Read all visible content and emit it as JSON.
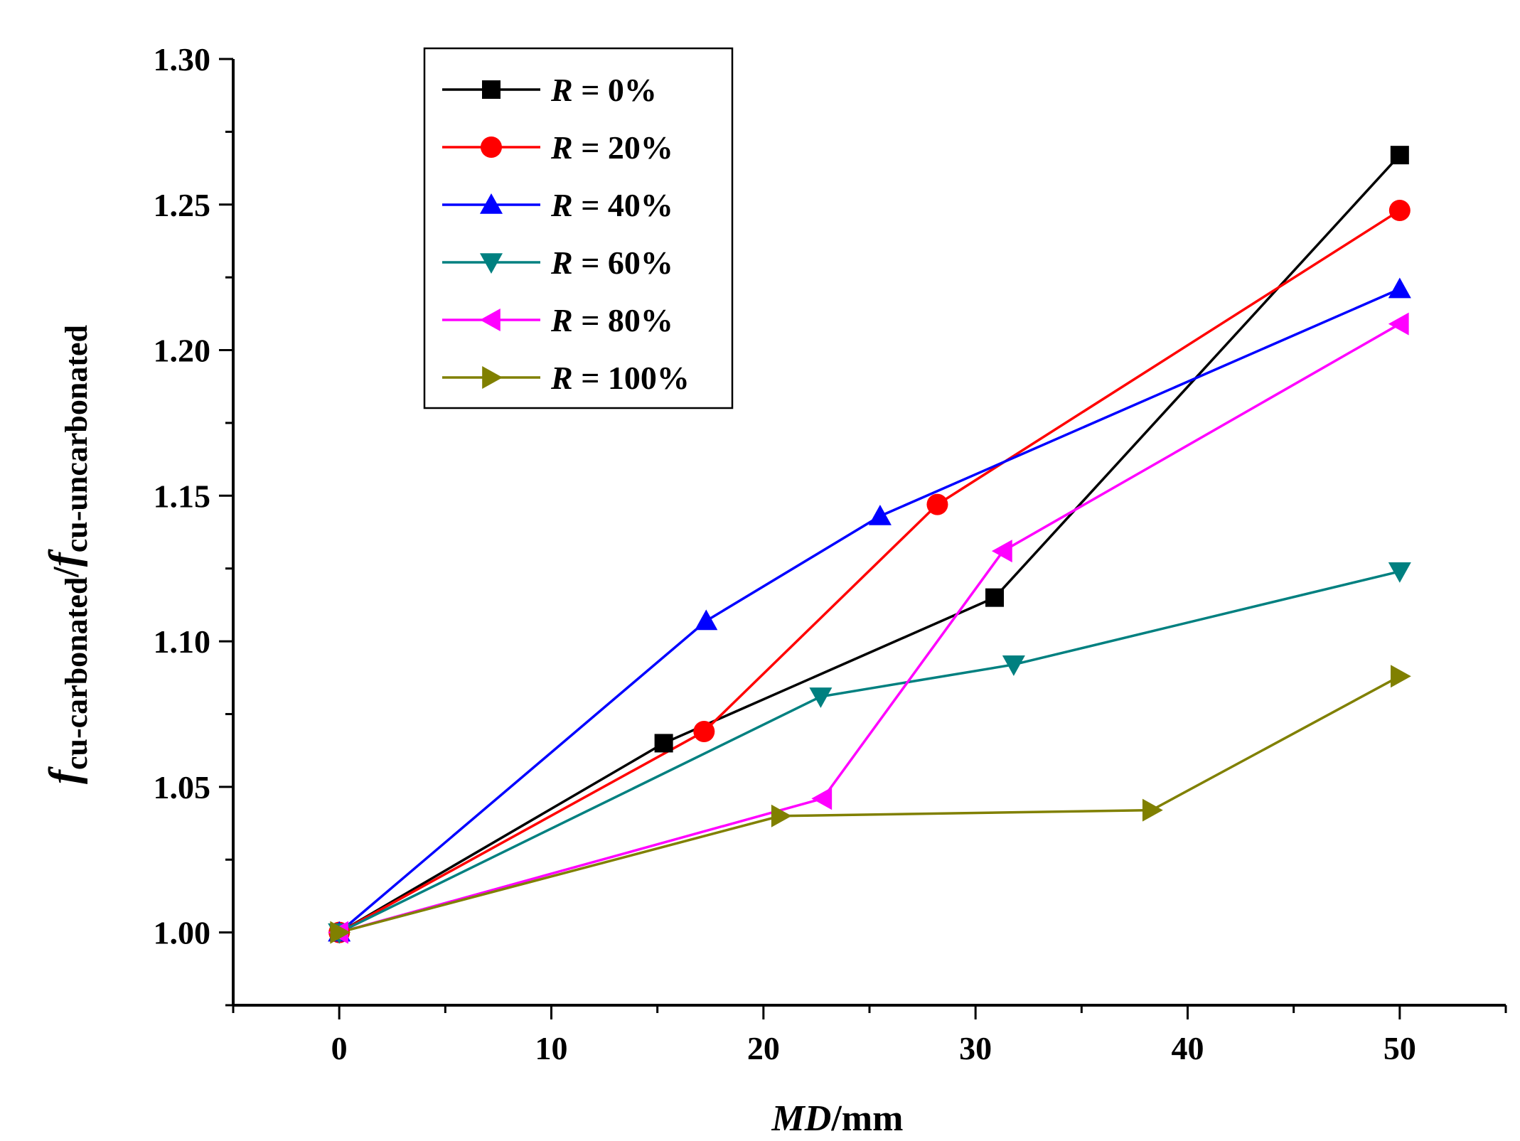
{
  "chart_data": {
    "type": "line",
    "title": "",
    "xlabel": {
      "italic": "MD",
      "rest": "/mm"
    },
    "ylabel": {
      "f1": "f",
      "sub1": "cu-carbonated",
      "slash": "/",
      "f2": "f",
      "sub2": "cu-uncarbonated"
    },
    "xlim": [
      -5,
      55
    ],
    "ylim": [
      0.975,
      1.3
    ],
    "x_ticks": [
      0,
      10,
      20,
      30,
      40,
      50
    ],
    "x_tick_labels": [
      "0",
      "10",
      "20",
      "30",
      "40",
      "50"
    ],
    "y_ticks": [
      1.0,
      1.05,
      1.1,
      1.15,
      1.2,
      1.25,
      1.3
    ],
    "y_tick_labels": [
      "1.00",
      "1.05",
      "1.10",
      "1.15",
      "1.20",
      "1.25",
      "1.30"
    ],
    "legend_position": "top-left",
    "series": [
      {
        "name": "R = 0%",
        "var": "R",
        "rest": " = 0%",
        "color": "#000000",
        "marker": "square",
        "x": [
          0,
          15.3,
          30.9,
          50
        ],
        "y": [
          1.0,
          1.065,
          1.115,
          1.267
        ]
      },
      {
        "name": "R = 20%",
        "var": "R",
        "rest": " = 20%",
        "color": "#ff0000",
        "marker": "circle",
        "x": [
          0,
          17.2,
          28.2,
          50
        ],
        "y": [
          1.0,
          1.069,
          1.147,
          1.248
        ]
      },
      {
        "name": "R = 40%",
        "var": "R",
        "rest": " = 40%",
        "color": "#0000ff",
        "marker": "triangle-up",
        "x": [
          0,
          17.3,
          25.5,
          50
        ],
        "y": [
          1.0,
          1.107,
          1.143,
          1.221
        ]
      },
      {
        "name": "R = 60%",
        "var": "R",
        "rest": " = 60%",
        "color": "#008080",
        "marker": "triangle-down",
        "x": [
          0,
          22.7,
          31.8,
          50
        ],
        "y": [
          1.0,
          1.081,
          1.092,
          1.124
        ]
      },
      {
        "name": "R = 80%",
        "var": "R",
        "rest": " = 80%",
        "color": "#ff00ff",
        "marker": "triangle-left",
        "x": [
          0,
          22.8,
          31.3,
          50
        ],
        "y": [
          1.0,
          1.046,
          1.131,
          1.209
        ]
      },
      {
        "name": "R = 100%",
        "var": "R",
        "rest": " = 100%",
        "color": "#808000",
        "marker": "triangle-right",
        "x": [
          0,
          20.8,
          38.3,
          50
        ],
        "y": [
          1.0,
          1.04,
          1.042,
          1.088
        ]
      }
    ]
  }
}
